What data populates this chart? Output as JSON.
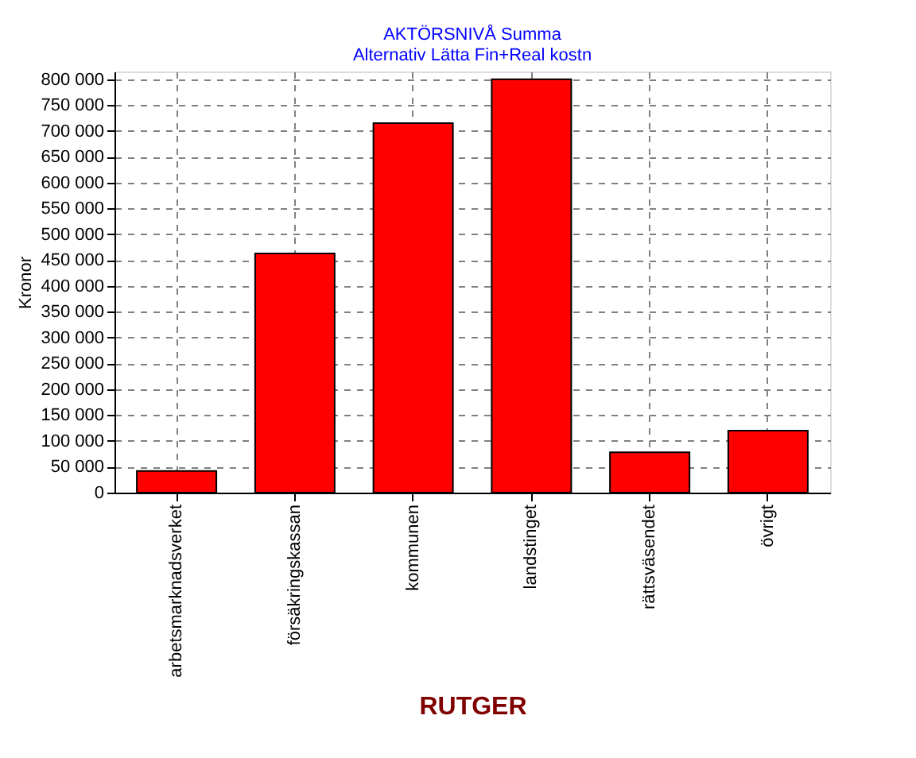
{
  "chart_data": {
    "type": "bar",
    "title": "AKTÖRSNIVÅ  Summa",
    "subtitle": "Alternativ Lätta Fin+Real kostn",
    "xlabel": "RUTGER",
    "ylabel": "Kronor",
    "categories": [
      "arbetsmarknadsverket",
      "försäkringskassan",
      "kommunen",
      "landstinget",
      "rättsväsendet",
      "övrigt"
    ],
    "values": [
      42000,
      463000,
      715000,
      800000,
      78000,
      120000
    ],
    "color": "#ff0000",
    "ylim": [
      0,
      815000
    ],
    "yticks": [
      0,
      {
        "value": 50000,
        "label": "50 000"
      },
      {
        "value": 100000,
        "label": "100 000"
      },
      {
        "value": 150000,
        "label": "150 000"
      },
      {
        "value": 200000,
        "label": "200 000"
      },
      {
        "value": 250000,
        "label": "250 000"
      },
      {
        "value": 300000,
        "label": "300 000"
      },
      {
        "value": 350000,
        "label": "350 000"
      },
      {
        "value": 400000,
        "label": "400 000"
      },
      {
        "value": 450000,
        "label": "450 000"
      },
      {
        "value": 500000,
        "label": "500 000"
      },
      {
        "value": 550000,
        "label": "550 000"
      },
      {
        "value": 600000,
        "label": "600 000"
      },
      {
        "value": 650000,
        "label": "650 000"
      },
      {
        "value": 700000,
        "label": "700 000"
      },
      {
        "value": 750000,
        "label": "750 000"
      },
      {
        "value": 800000,
        "label": "800 000"
      }
    ],
    "grid": true
  }
}
